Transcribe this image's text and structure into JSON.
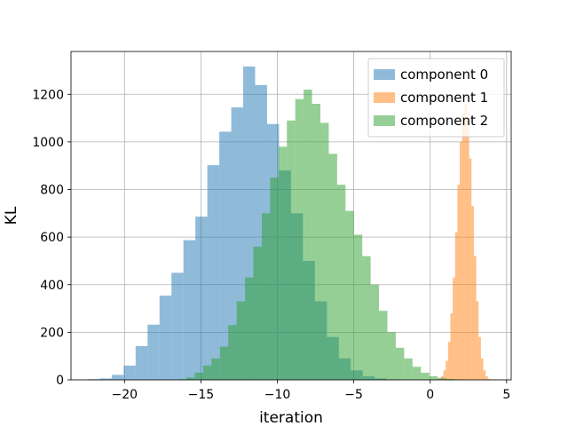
{
  "chart_data": {
    "type": "histogram",
    "xlabel": "iteration",
    "ylabel": "KL",
    "xlim": [
      -23.5,
      5.3
    ],
    "ylim": [
      0,
      1380
    ],
    "xticks": [
      -20,
      -15,
      -10,
      -5,
      0,
      5
    ],
    "xtick_labels": [
      "−20",
      "−15",
      "−10",
      "−5",
      "0",
      "5"
    ],
    "yticks": [
      0,
      200,
      400,
      600,
      800,
      1000,
      1200
    ],
    "ytick_labels": [
      "0",
      "200",
      "400",
      "600",
      "800",
      "1000",
      "1200"
    ],
    "grid": true,
    "legend_position": "top-right",
    "series": [
      {
        "name": "component 0",
        "color": "#1f77b4",
        "opacity": 0.5,
        "bin_start": -22.4,
        "bin_width": 0.782,
        "values": [
          3,
          6,
          21,
          60,
          142,
          232,
          354,
          450,
          587,
          686,
          902,
          1043,
          1145,
          1317,
          1239,
          1075,
          880,
          700,
          500,
          330,
          180,
          90,
          40,
          15,
          6,
          2
        ]
      },
      {
        "name": "component 1",
        "color": "#ff7f0e",
        "opacity": 0.5,
        "bin_start": 0.4,
        "bin_width": 0.1536,
        "values": [
          2,
          6,
          15,
          40,
          80,
          160,
          280,
          430,
          620,
          820,
          1000,
          1120,
          1160,
          1100,
          930,
          730,
          520,
          330,
          180,
          90,
          40,
          15,
          4
        ]
      },
      {
        "name": "component 2",
        "color": "#2ca02c",
        "opacity": 0.5,
        "bin_start": -16.5,
        "bin_width": 0.548,
        "values": [
          3,
          10,
          30,
          60,
          90,
          140,
          230,
          330,
          430,
          560,
          700,
          850,
          980,
          1090,
          1180,
          1220,
          1160,
          1080,
          950,
          820,
          710,
          610,
          520,
          400,
          290,
          200,
          135,
          90,
          55,
          30,
          15,
          8,
          4,
          2
        ]
      }
    ]
  }
}
